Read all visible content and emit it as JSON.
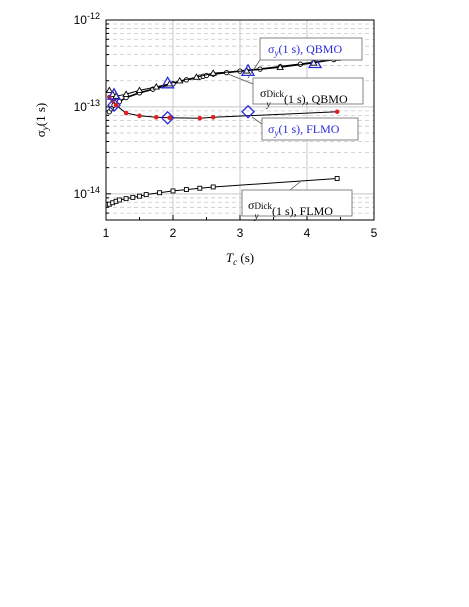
{
  "chart_data": {
    "type": "scatter",
    "title": "",
    "xlabel": {
      "main": "T",
      "sub": "c",
      "rest": " (s)"
    },
    "ylabel": {
      "main": "σ",
      "sub": "y",
      "rest": "(1 s)"
    },
    "xlim": [
      1,
      5
    ],
    "ylim_log": [
      5e-15,
      1e-12
    ],
    "x_ticks": [
      "1",
      "2",
      "3",
      "4",
      "5"
    ],
    "y_ticks": [
      {
        "base": "10",
        "exp": "-12"
      },
      {
        "base": "10",
        "exp": "-13"
      },
      {
        "base": "10",
        "exp": "-14"
      }
    ],
    "grid": true,
    "scale_y": "log",
    "series": [
      {
        "id": "dick_qbmo",
        "style": "open-circle-line",
        "color": "#000000",
        "x": [
          1.05,
          1.08,
          1.12,
          1.2,
          1.3,
          1.5,
          1.7,
          2.0,
          2.2,
          2.4,
          2.45,
          2.5,
          2.6,
          2.8,
          3.0,
          3.3,
          3.6,
          3.9,
          4.1,
          4.4
        ],
        "y": [
          8.8e-14,
          9.5e-14,
          1.05e-13,
          1.15e-13,
          1.28e-13,
          1.45e-13,
          1.6e-13,
          1.85e-13,
          2.05e-13,
          2.2e-13,
          2.25e-13,
          2.3e-13,
          2.38e-13,
          2.48e-13,
          2.58e-13,
          2.72e-13,
          2.9e-13,
          3.1e-13,
          3.25e-13,
          3.5e-13
        ]
      },
      {
        "id": "qbmo",
        "style": "triangle-line",
        "color": "#000000",
        "x": [
          1.05,
          1.1,
          1.15,
          1.3,
          1.5,
          1.75,
          1.95,
          2.1,
          2.35,
          2.6,
          3.1,
          3.6,
          4.1,
          4.45
        ],
        "y": [
          1.55e-13,
          1.4e-13,
          1.33e-13,
          1.4e-13,
          1.55e-13,
          1.7e-13,
          1.85e-13,
          2e-13,
          2.2e-13,
          2.45e-13,
          2.6e-13,
          2.85e-13,
          3.2e-13,
          3.65e-13
        ]
      },
      {
        "id": "flmo",
        "style": "red-dot-line",
        "color": "#e02020",
        "x": [
          1.05,
          1.1,
          1.15,
          1.3,
          1.5,
          1.75,
          1.95,
          2.4,
          2.6,
          4.45
        ],
        "y": [
          1.3e-13,
          1.18e-13,
          1.05e-13,
          8.5e-14,
          7.9e-14,
          7.6e-14,
          7.5e-14,
          7.4e-14,
          7.6e-14,
          8.8e-14
        ]
      },
      {
        "id": "dick_flmo",
        "style": "open-square-line",
        "color": "#000000",
        "x": [
          1.05,
          1.1,
          1.15,
          1.2,
          1.3,
          1.4,
          1.5,
          1.6,
          1.8,
          2.0,
          2.2,
          2.4,
          2.6,
          4.45
        ],
        "y": [
          7.6e-15,
          7.9e-15,
          8.2e-15,
          8.5e-15,
          8.8e-15,
          9.1e-15,
          9.4e-15,
          9.8e-15,
          1.03e-14,
          1.08e-14,
          1.12e-14,
          1.16e-14,
          1.2e-14,
          1.5e-14
        ]
      }
    ],
    "markers": [
      {
        "shape": "triangle",
        "color": "#2a2ad8",
        "x": 1.12,
        "y": 1.38e-13
      },
      {
        "shape": "triangle",
        "color": "#2a2ad8",
        "x": 1.92,
        "y": 1.87e-13
      },
      {
        "shape": "triangle",
        "color": "#2a2ad8",
        "x": 3.12,
        "y": 2.6e-13
      },
      {
        "shape": "triangle",
        "color": "#2a2ad8",
        "x": 4.12,
        "y": 3.2e-13
      },
      {
        "shape": "diamond",
        "color": "#2a2ad8",
        "x": 1.12,
        "y": 1.05e-13
      },
      {
        "shape": "diamond",
        "color": "#2a2ad8",
        "x": 1.92,
        "y": 7.5e-14
      },
      {
        "shape": "diamond",
        "color": "#2a2ad8",
        "x": 3.12,
        "y": 8.8e-14
      }
    ],
    "annotations": [
      {
        "id": "qbmo",
        "color": "#2a2ad8",
        "main": "σ",
        "sub": "y",
        "sup": "",
        "rest": "(1 s), QBMO"
      },
      {
        "id": "dick_qbmo",
        "color": "#000000",
        "main": "σ",
        "sub": "y",
        "sup": "Dick",
        "rest": "(1 s), QBMO"
      },
      {
        "id": "flmo",
        "color": "#2a2ad8",
        "main": "σ",
        "sub": "y",
        "sup": "",
        "rest": "(1 s), FLMO"
      },
      {
        "id": "dick_flmo",
        "color": "#000000",
        "main": "σ",
        "sub": "y",
        "sup": "Dick",
        "rest": "(1 s), FLMO"
      }
    ]
  }
}
